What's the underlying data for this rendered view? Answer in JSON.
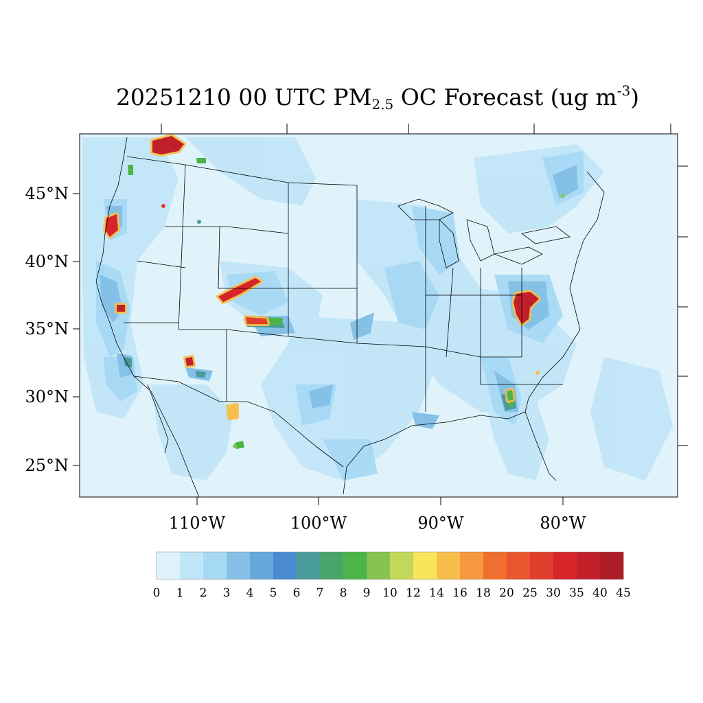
{
  "title": {
    "main": "20251210 00 UTC PM",
    "sub": "2.5",
    "mid": " OC Forecast (ug m",
    "sup": "-3",
    "end": ")"
  },
  "map": {
    "lat_labels": [
      "45°N",
      "40°N",
      "35°N",
      "30°N",
      "25°N"
    ],
    "lon_labels": [
      "110°W",
      "100°W",
      "90°W",
      "80°W"
    ],
    "background_color": "#e0f3fb"
  },
  "colorbar": {
    "labels": [
      "0",
      "1",
      "2",
      "3",
      "4",
      "5",
      "6",
      "7",
      "8",
      "9",
      "10",
      "12",
      "14",
      "16",
      "18",
      "20",
      "25",
      "30",
      "35",
      "40",
      "45"
    ],
    "colors": [
      "#dff2fb",
      "#c1e6f8",
      "#a6d9f4",
      "#85c1e6",
      "#66a8db",
      "#4a8ccf",
      "#4a9c9b",
      "#48a468",
      "#4cb54a",
      "#85c44e",
      "#c3d85a",
      "#f8e55a",
      "#f8be4a",
      "#f6983d",
      "#f16f2e",
      "#ea5630",
      "#e13d2d",
      "#d52529",
      "#c1202a",
      "#ac1c24",
      "#8f171d"
    ]
  },
  "hotspots": [
    {
      "name": "northern-idaho-hotspot",
      "color": "#c1202a"
    },
    {
      "name": "oregon-hotspot",
      "color": "#d52529"
    },
    {
      "name": "central-california-hotspot",
      "color": "#c1202a"
    },
    {
      "name": "colorado-hotspot",
      "color": "#d52529"
    },
    {
      "name": "new-mexico-north-hotspot",
      "color": "#e13d2d"
    },
    {
      "name": "arizona-hotspot",
      "color": "#c1202a"
    },
    {
      "name": "chihuahua-hotspot",
      "color": "#f8be4a"
    },
    {
      "name": "west-virginia-hotspot",
      "color": "#c1202a"
    },
    {
      "name": "georgia-hotspot",
      "color": "#4cb54a"
    }
  ]
}
